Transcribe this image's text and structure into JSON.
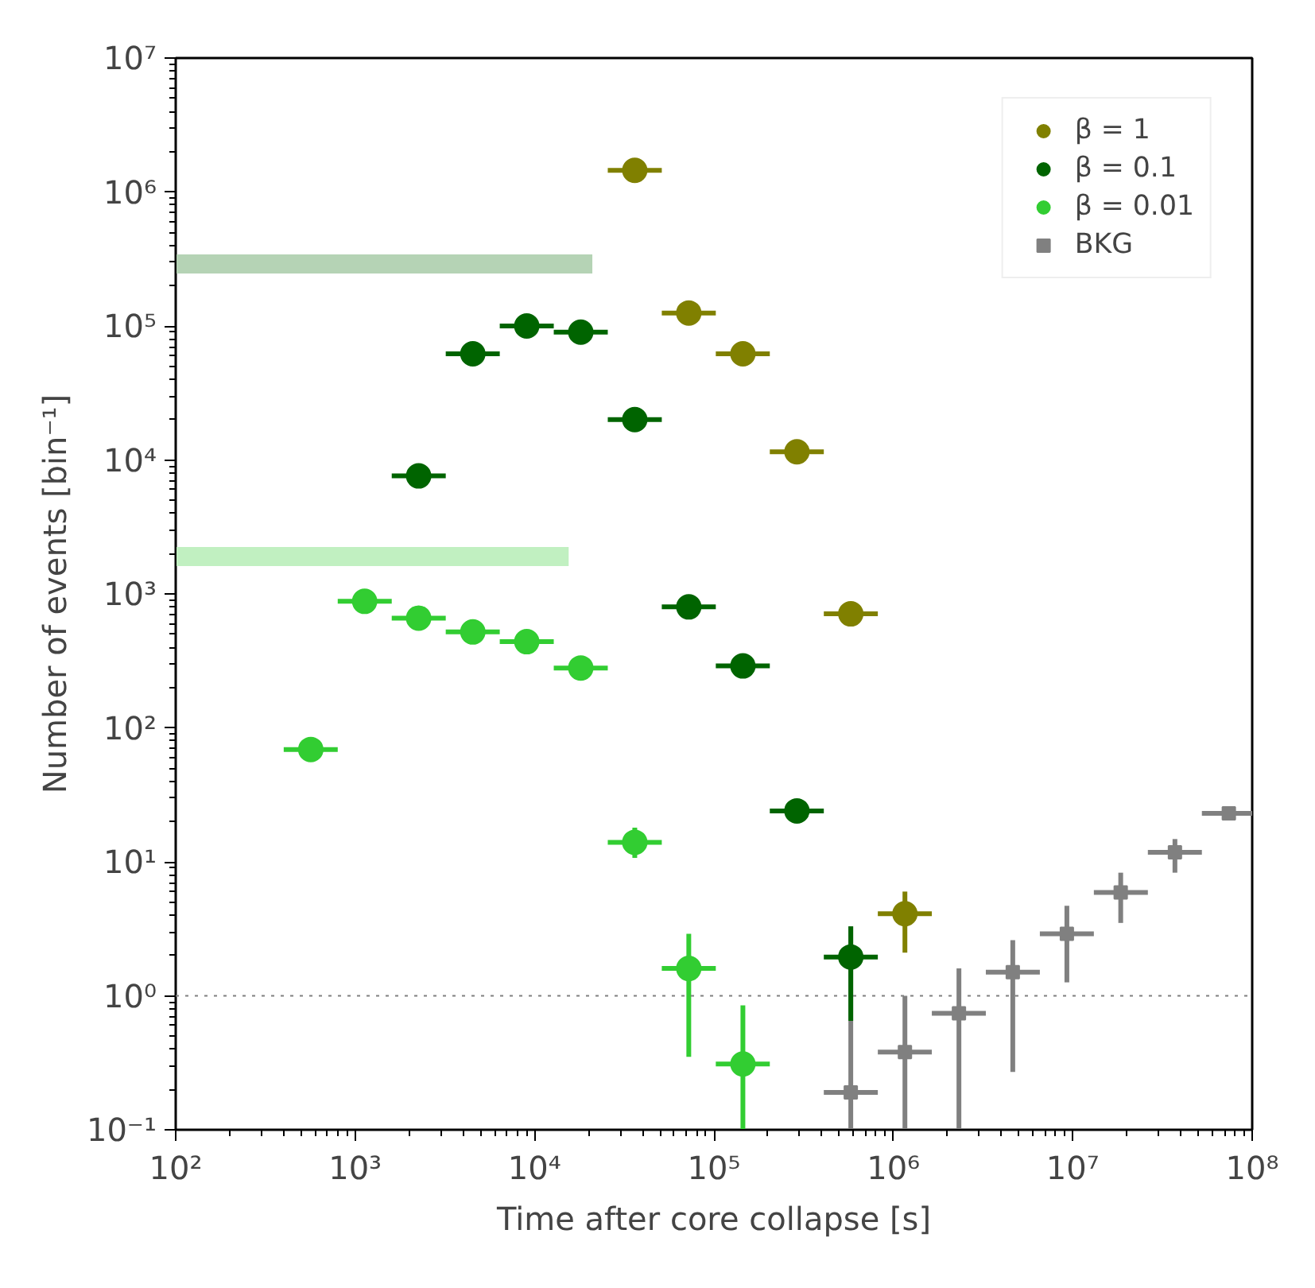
{
  "chart_data": {
    "type": "scatter",
    "xlabel": "Time after core collapse [s]",
    "ylabel": "Number of events [bin⁻¹]",
    "log": "xy",
    "grid": false,
    "legend": "top right",
    "xlim": [
      100,
      100000000
    ],
    "ylim": [
      0.1,
      10000000
    ],
    "xticks": [
      {
        "value": 100,
        "label": "10²"
      },
      {
        "value": 1000,
        "label": "10³"
      },
      {
        "value": 10000,
        "label": "10⁴"
      },
      {
        "value": 100000,
        "label": "10⁵"
      },
      {
        "value": 1000000,
        "label": "10⁶"
      },
      {
        "value": 10000000,
        "label": "10⁷"
      },
      {
        "value": 100000000,
        "label": "10⁸"
      }
    ],
    "yticks": [
      {
        "value": 0.1,
        "label": "10⁻¹"
      },
      {
        "value": 1,
        "label": "10⁰"
      },
      {
        "value": 10,
        "label": "10¹"
      },
      {
        "value": 100,
        "label": "10²"
      },
      {
        "value": 1000,
        "label": "10³"
      },
      {
        "value": 10000,
        "label": "10⁴"
      },
      {
        "value": 100000,
        "label": "10⁵"
      },
      {
        "value": 1000000,
        "label": "10⁶"
      },
      {
        "value": 10000000,
        "label": "10⁷"
      }
    ],
    "ref_lines": [
      {
        "axis": "y",
        "value": 1,
        "color": "#808080",
        "line_style": "dotted"
      }
    ],
    "series": [
      {
        "type": "line",
        "color": "#b5d3b5",
        "x": [
          100,
          21000
        ],
        "values": [
          290000,
          290000
        ]
      },
      {
        "type": "line",
        "color": "#c1f0c1",
        "x": [
          100,
          15500
        ],
        "values": [
          1900,
          1900
        ]
      },
      {
        "name": "β = 1",
        "color": "#808000",
        "marker": "circle",
        "x": [
          36200,
          72400,
          145000,
          290000,
          579000,
          1160000
        ],
        "values": [
          1450000,
          125000,
          62000,
          11500,
          710,
          4.1
        ],
        "errors": [
          null,
          null,
          null,
          null,
          null,
          [
            2.1,
            6.0
          ]
        ],
        "xerrors": [
          [
            25600,
            51200
          ],
          [
            51200,
            102400
          ],
          [
            102400,
            204800
          ],
          [
            204800,
            409600
          ],
          [
            409600,
            819200
          ],
          [
            819200,
            1638400
          ]
        ]
      },
      {
        "name": "β = 0.1",
        "color": "#006400",
        "marker": "circle",
        "x": [
          2260,
          4530,
          9050,
          18100,
          36200,
          72400,
          145000,
          290000,
          579000
        ],
        "values": [
          7600,
          62000,
          100000,
          90000,
          20000,
          800,
          290,
          24,
          1.95
        ],
        "errors": [
          null,
          null,
          null,
          null,
          null,
          null,
          null,
          null,
          [
            0.65,
            3.3
          ]
        ],
        "xerrors": [
          [
            1600,
            3200
          ],
          [
            3200,
            6400
          ],
          [
            6400,
            12800
          ],
          [
            12800,
            25600
          ],
          [
            25600,
            51200
          ],
          [
            51200,
            102400
          ],
          [
            102400,
            204800
          ],
          [
            204800,
            409600
          ],
          [
            409600,
            819200
          ]
        ]
      },
      {
        "name": "β = 0.01",
        "color": "#32cd32",
        "marker": "circle",
        "x": [
          566,
          1130,
          2260,
          4530,
          9050,
          18100,
          36200,
          72400,
          145000
        ],
        "values": [
          69,
          880,
          660,
          520,
          440,
          280,
          14,
          1.6,
          0.31
        ],
        "errors": [
          null,
          null,
          null,
          null,
          null,
          null,
          [
            10.7,
            18
          ],
          [
            0.35,
            2.9
          ],
          [
            0.1,
            0.85
          ]
        ],
        "xerrors": [
          [
            400,
            800
          ],
          [
            800,
            1600
          ],
          [
            1600,
            3200
          ],
          [
            3200,
            6400
          ],
          [
            6400,
            12800
          ],
          [
            12800,
            25600
          ],
          [
            25600,
            51200
          ],
          [
            51200,
            102400
          ],
          [
            102400,
            204800
          ]
        ]
      },
      {
        "name": "BKG",
        "color": "#808080",
        "marker": "square",
        "x": [
          579000,
          1160000,
          2320000,
          4630000,
          9270000,
          18500000,
          37100000,
          74100000
        ],
        "values": [
          0.19,
          0.38,
          0.74,
          1.5,
          2.9,
          5.9,
          11.8,
          23
        ],
        "errors": [
          [
            0.1,
            3.3
          ],
          [
            0.1,
            1.0
          ],
          [
            0.1,
            1.6
          ],
          [
            0.27,
            2.6
          ],
          [
            1.26,
            4.7
          ],
          [
            3.5,
            8.3
          ],
          [
            8.3,
            14.8
          ],
          null
        ],
        "xerrors": [
          [
            409600,
            819200
          ],
          [
            819200,
            1638400
          ],
          [
            1638400,
            3276800
          ],
          [
            3276800,
            6553600
          ],
          [
            6553600,
            13107200
          ],
          [
            13107200,
            26214400
          ],
          [
            26214400,
            52428800
          ],
          [
            52428800,
            104857600
          ]
        ]
      }
    ]
  }
}
